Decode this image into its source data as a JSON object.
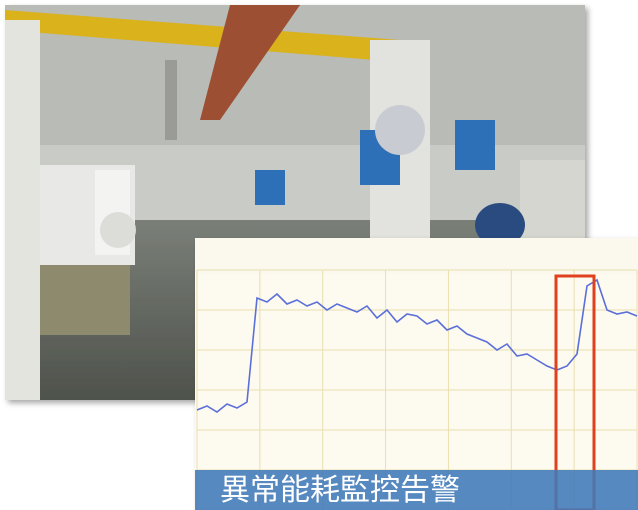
{
  "caption": "異常能耗監控告警",
  "chart_data": {
    "type": "line",
    "color": "#5b6fd8",
    "values": [
      30,
      32,
      29,
      33,
      31,
      34,
      86,
      84,
      88,
      83,
      85,
      82,
      84,
      80,
      83,
      81,
      79,
      82,
      76,
      80,
      74,
      78,
      77,
      73,
      75,
      70,
      72,
      68,
      66,
      64,
      60,
      63,
      57,
      58,
      55,
      52,
      50,
      52,
      58,
      92,
      95,
      80,
      78,
      79,
      77
    ],
    "ylim": [
      0,
      100
    ],
    "grid": true
  }
}
